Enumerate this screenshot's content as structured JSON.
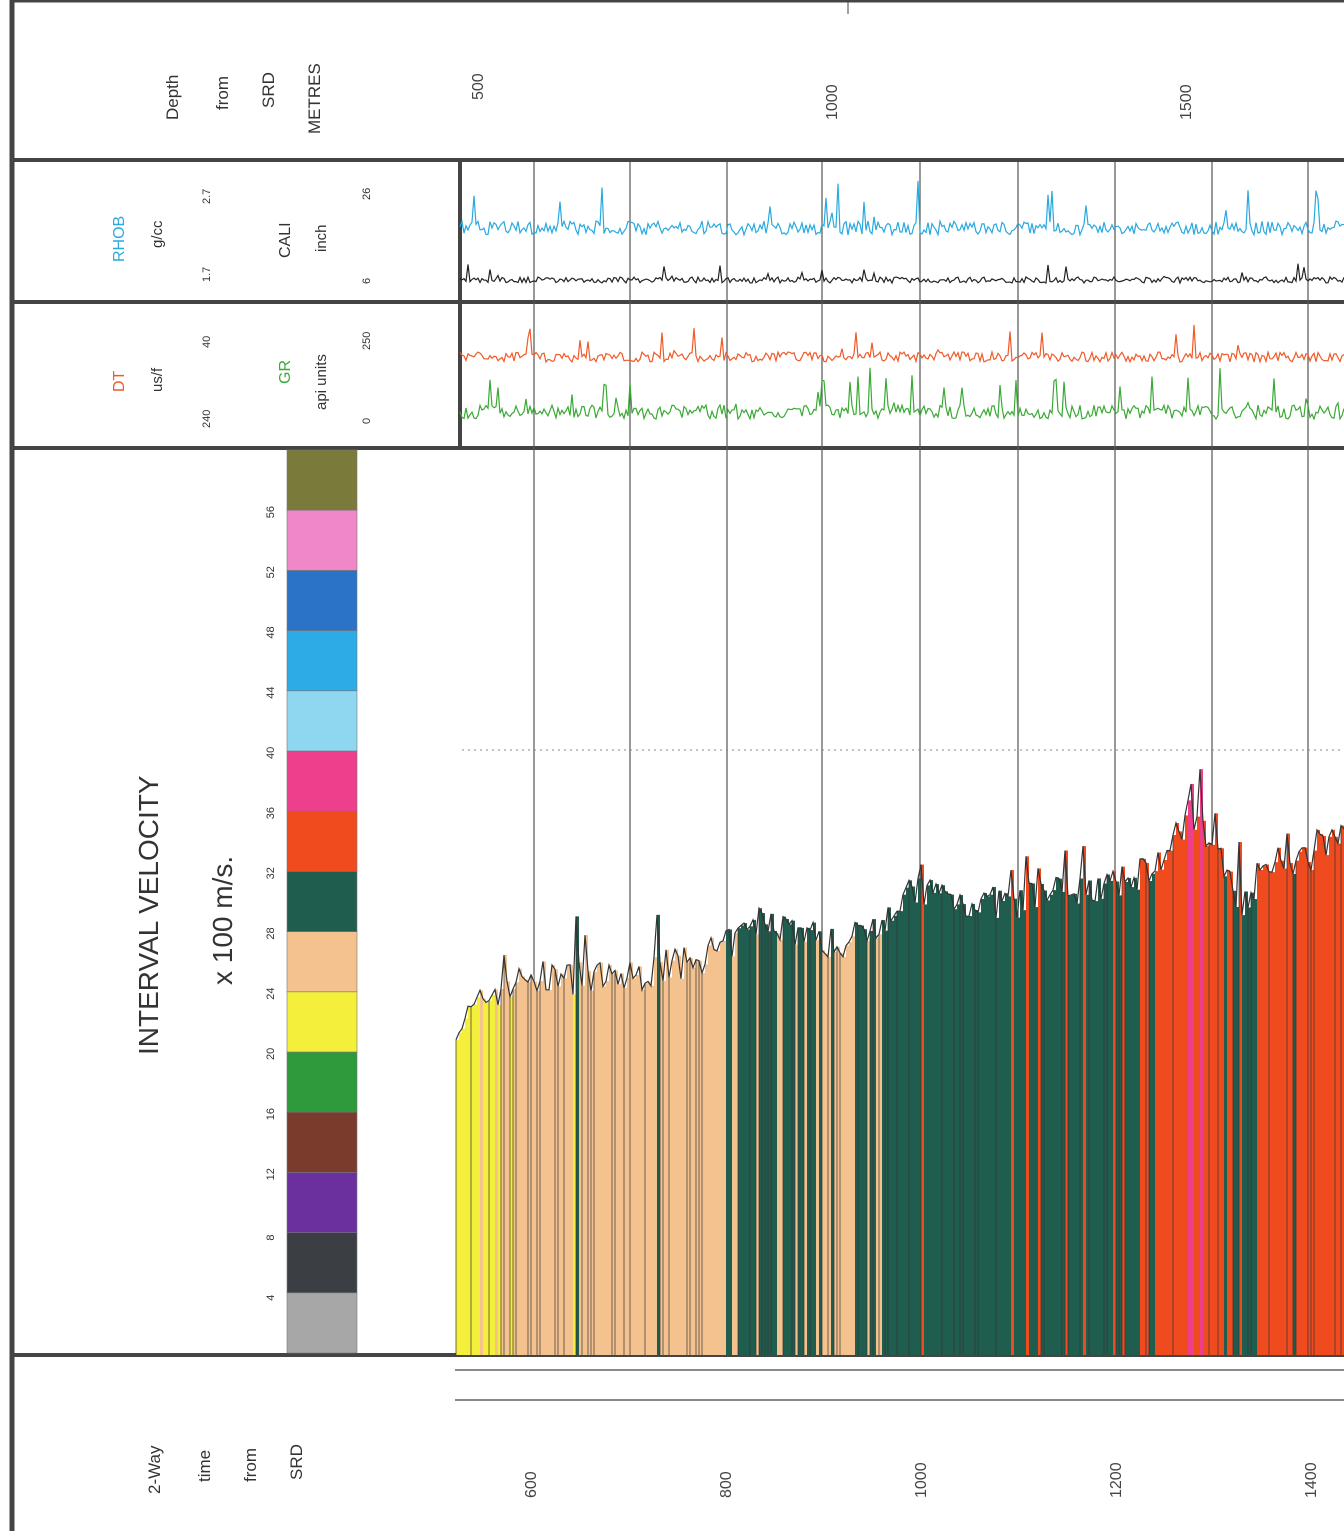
{
  "header": {
    "depth": {
      "line1": "Depth",
      "line2": "from",
      "line3": "SRD",
      "line4": "METRES"
    },
    "rhob": {
      "name": "RHOB",
      "unit": "g/cc",
      "min": "1.7",
      "max": "2.7",
      "color": "#29a9df"
    },
    "cali": {
      "name": "CALI",
      "unit": "inch",
      "min": "6",
      "max": "26",
      "color": "#222222"
    },
    "dt": {
      "name": "DT",
      "unit": "us/f",
      "min": "240",
      "max": "40",
      "color": "#f05a28"
    },
    "gr": {
      "name": "GR",
      "unit": "api units",
      "min": "0",
      "max": "250",
      "color": "#3aa935"
    },
    "interval_velocity": {
      "title": "INTERVAL VELOCITY",
      "subtitle": "x 100 m/s."
    },
    "twt": {
      "line1": "2-Way",
      "line2": "time",
      "line3": "from",
      "line4": "SRD"
    }
  },
  "velocity_scale": {
    "ticks": [
      "4",
      "8",
      "12",
      "16",
      "20",
      "24",
      "28",
      "32",
      "36",
      "40",
      "44",
      "48",
      "52",
      "56"
    ],
    "colors": [
      "#a7a7a7",
      "#3b3f44",
      "#6b2f9e",
      "#7a3b2c",
      "#2f9a3c",
      "#f3ef3a",
      "#f4c28f",
      "#1f5e4e",
      "#f04a1f",
      "#ee3f8c",
      "#8fd6f1",
      "#2cabe6",
      "#2b73c7",
      "#f087c8",
      "#7a7a3a"
    ]
  },
  "chart_data": {
    "type": "area",
    "title": "INTERVAL VELOCITY",
    "ylabel": "x 100 m/s.",
    "depth_axis": {
      "label": "Depth from SRD METRES",
      "ticks": [
        500,
        1000,
        1500
      ]
    },
    "time_axis": {
      "label": "2-Way time from SRD",
      "ticks": [
        600,
        800,
        1000,
        1200,
        1400
      ]
    },
    "ylim": [
      0,
      60
    ],
    "interval_velocity_profile": {
      "time_ms": [
        530,
        560,
        600,
        650,
        700,
        760,
        800,
        840,
        880,
        920,
        960,
        1000,
        1050,
        1100,
        1150,
        1200,
        1250,
        1280,
        1300,
        1330,
        1350,
        1400,
        1430
      ],
      "velocity_x100ms": [
        22,
        24,
        25,
        25,
        25,
        26,
        27,
        29,
        28,
        27,
        29,
        31,
        30,
        30,
        31,
        31,
        33,
        36,
        34,
        30,
        32,
        33,
        35
      ]
    }
  }
}
